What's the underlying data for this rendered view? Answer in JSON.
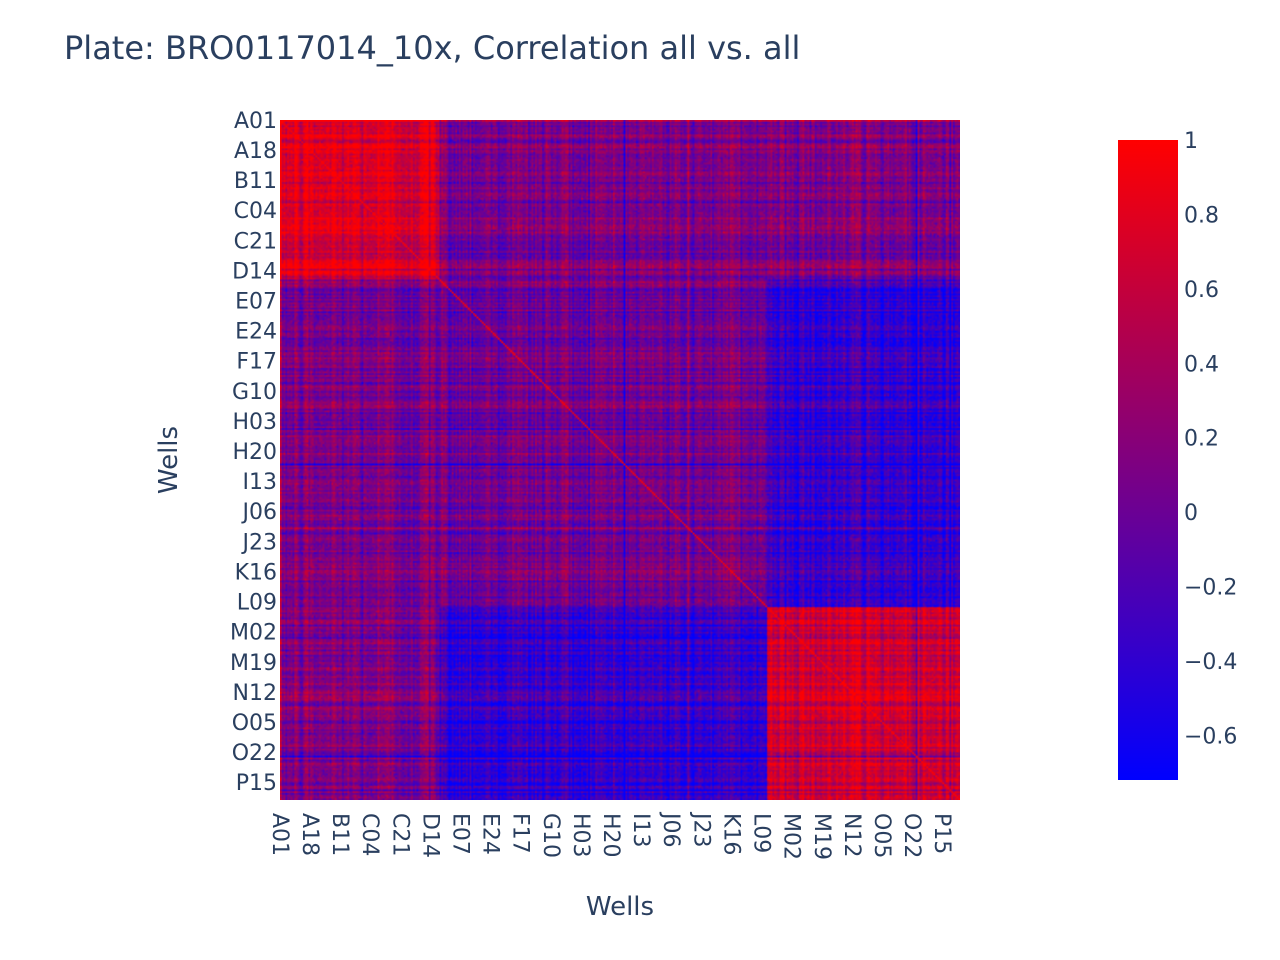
{
  "chart_data": {
    "type": "heatmap",
    "title": "Plate: BRO0117014_10x, Correlation all vs. all",
    "xlabel": "Wells",
    "ylabel": "Wells",
    "x_tick_labels": [
      "A01",
      "A18",
      "B11",
      "C04",
      "C21",
      "D14",
      "E07",
      "E24",
      "F17",
      "G10",
      "H03",
      "H20",
      "I13",
      "J06",
      "J23",
      "K16",
      "L09",
      "M02",
      "M19",
      "N12",
      "O05",
      "O22",
      "P15"
    ],
    "y_tick_labels": [
      "A01",
      "A18",
      "B11",
      "C04",
      "C21",
      "D14",
      "E07",
      "E24",
      "F17",
      "G10",
      "H03",
      "H20",
      "I13",
      "J06",
      "J23",
      "K16",
      "L09",
      "M02",
      "M19",
      "N12",
      "O05",
      "O22",
      "P15"
    ],
    "n_wells": 384,
    "tick_step": 17,
    "value_range": [
      -0.72,
      1.0
    ],
    "diagonal_value": 1.0,
    "colorscale": [
      [
        0,
        "#0000ff"
      ],
      [
        1,
        "#ff0000"
      ]
    ],
    "colorbar": {
      "tick_values": [
        1,
        0.8,
        0.6,
        0.4,
        0.2,
        0,
        -0.2,
        -0.4,
        -0.6
      ],
      "tick_labels": [
        "1",
        "0.8",
        "0.6",
        "0.4",
        "0.2",
        "0",
        "−0.2",
        "−0.4",
        "−0.6"
      ]
    },
    "block_structure": [
      {
        "wells": "A01–D14",
        "within_block_corr": 0.75
      },
      {
        "wells": "D14–L09",
        "within_block_corr": 0.05
      },
      {
        "wells": "L09–P24",
        "within_block_corr": 0.7
      },
      {
        "wells": "A01–D14 vs L09–P24",
        "between_block_corr": 0.15
      },
      {
        "wells": "D14–L09 vs L09–P24",
        "between_block_corr": -0.35
      }
    ]
  }
}
